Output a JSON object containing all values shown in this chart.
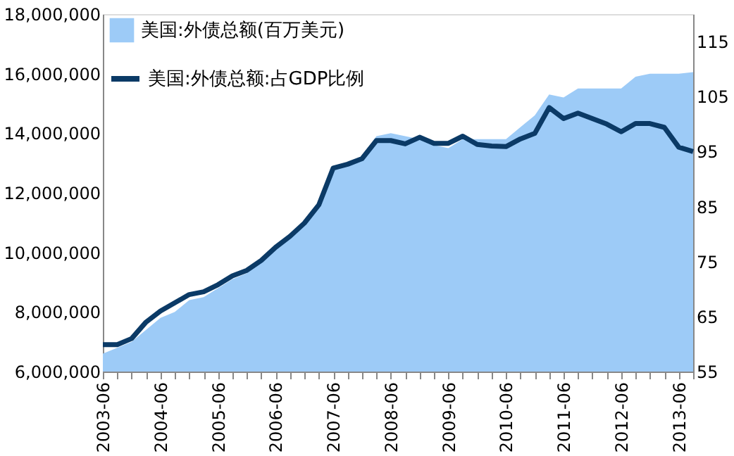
{
  "chart_data": {
    "type": "area",
    "categories": [
      "2003-06",
      null,
      null,
      null,
      "2004-06",
      null,
      null,
      null,
      "2005-06",
      null,
      null,
      null,
      "2006-06",
      null,
      null,
      null,
      "2007-06",
      null,
      null,
      null,
      "2008-06",
      null,
      null,
      null,
      "2009-06",
      null,
      null,
      null,
      "2010-06",
      null,
      null,
      null,
      "2011-06",
      null,
      null,
      null,
      "2012-06",
      null,
      null,
      null,
      "2013-06",
      null
    ],
    "series": [
      {
        "name": "美国:外债总额(百万美元)",
        "color": "#9dcbf7",
        "values": [
          6600000,
          6800000,
          7000000,
          7400000,
          7800000,
          8000000,
          8400000,
          8500000,
          8800000,
          9100000,
          9300000,
          9700000,
          10100000,
          10500000,
          11000000,
          11500000,
          12800000,
          12900000,
          13200000,
          13900000,
          14000000,
          13900000,
          13800000,
          13600000,
          13500000,
          13800000,
          13800000,
          13800000,
          13800000,
          14200000,
          14600000,
          15300000,
          15200000,
          15500000,
          15500000,
          15500000,
          15500000,
          15900000,
          16000000,
          16000000,
          16000000,
          16050000
        ]
      },
      {
        "name": "美国:外债总额:占GDP比例",
        "type": "line",
        "axis": "y2",
        "color": "#0b3a66",
        "values": [
          59.9,
          59.9,
          61,
          64,
          66,
          67.5,
          69,
          69.5,
          70.8,
          72.4,
          73.4,
          75.2,
          77.6,
          79.6,
          82,
          85.3,
          92,
          92.7,
          93.7,
          97,
          97,
          96.4,
          97.6,
          96.5,
          96.5,
          97.8,
          96.3,
          96,
          95.9,
          97.3,
          98.3,
          103,
          101,
          102,
          101,
          100,
          98.6,
          100.1,
          100.1,
          99.4,
          95.8,
          95
        ]
      }
    ],
    "ylim": [
      6000000,
      18000000
    ],
    "yticks": [
      {
        "value": 6000000,
        "label": "6,000,000"
      },
      {
        "value": 8000000,
        "label": "8,000,000"
      },
      {
        "value": 10000000,
        "label": "10,000,000"
      },
      {
        "value": 12000000,
        "label": "12,000,000"
      },
      {
        "value": 14000000,
        "label": "14,000,000"
      },
      {
        "value": 16000000,
        "label": "16,000,000"
      },
      {
        "value": 18000000,
        "label": "18,000,000"
      }
    ],
    "y2lim": [
      55,
      120
    ],
    "y2ticks": [
      55,
      65,
      75,
      85,
      95,
      105,
      115
    ],
    "legend": "top left",
    "grid": false,
    "marker": "none",
    "line_style": "solid"
  }
}
